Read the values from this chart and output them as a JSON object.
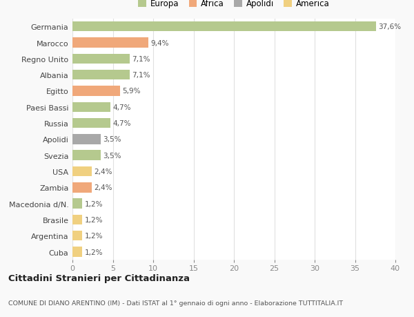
{
  "categories": [
    "Germania",
    "Marocco",
    "Regno Unito",
    "Albania",
    "Egitto",
    "Paesi Bassi",
    "Russia",
    "Apolidi",
    "Svezia",
    "USA",
    "Zambia",
    "Macedonia d/N.",
    "Brasile",
    "Argentina",
    "Cuba"
  ],
  "values": [
    37.6,
    9.4,
    7.1,
    7.1,
    5.9,
    4.7,
    4.7,
    3.5,
    3.5,
    2.4,
    2.4,
    1.2,
    1.2,
    1.2,
    1.2
  ],
  "labels": [
    "37,6%",
    "9,4%",
    "7,1%",
    "7,1%",
    "5,9%",
    "4,7%",
    "4,7%",
    "3,5%",
    "3,5%",
    "2,4%",
    "2,4%",
    "1,2%",
    "1,2%",
    "1,2%",
    "1,2%"
  ],
  "colors": [
    "#b5c98e",
    "#f0a87a",
    "#b5c98e",
    "#b5c98e",
    "#f0a87a",
    "#b5c98e",
    "#b5c98e",
    "#a8a8a8",
    "#b5c98e",
    "#f0d080",
    "#f0a87a",
    "#b5c98e",
    "#f0d080",
    "#f0d080",
    "#f0d080"
  ],
  "legend": [
    {
      "label": "Europa",
      "color": "#b5c98e"
    },
    {
      "label": "Africa",
      "color": "#f0a87a"
    },
    {
      "label": "Apolidi",
      "color": "#a8a8a8"
    },
    {
      "label": "America",
      "color": "#f0d080"
    }
  ],
  "xlim": [
    0,
    40
  ],
  "xticks": [
    0,
    5,
    10,
    15,
    20,
    25,
    30,
    35,
    40
  ],
  "title": "Cittadini Stranieri per Cittadinanza",
  "subtitle": "COMUNE DI DIANO ARENTINO (IM) - Dati ISTAT al 1° gennaio di ogni anno - Elaborazione TUTTITALIA.IT",
  "background_color": "#f9f9f9",
  "plot_background": "#ffffff",
  "grid_color": "#e0e0e0"
}
